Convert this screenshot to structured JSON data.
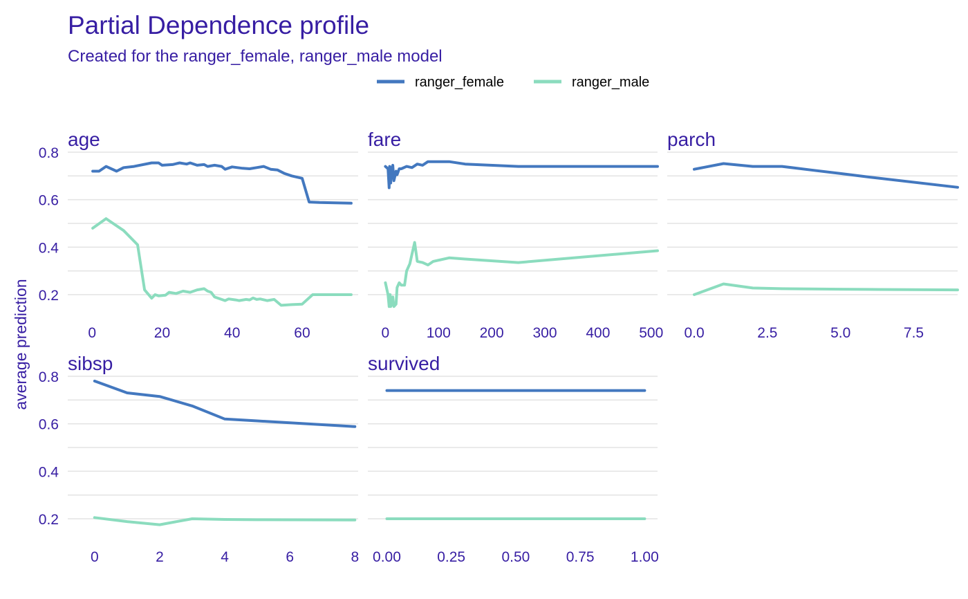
{
  "chart_data": {
    "type": "line",
    "title": "Partial Dependence profile",
    "subtitle": "Created for the ranger_female, ranger_male model",
    "ylabel": "average prediction",
    "legend_position": "top-center",
    "legend": [
      {
        "name": "ranger_female",
        "color": "#4378bf"
      },
      {
        "name": "ranger_male",
        "color": "#8bdcbe"
      }
    ],
    "ylim": [
      0.12,
      0.82
    ],
    "yticks": [
      0.2,
      0.4,
      0.6,
      0.8
    ],
    "grid": true,
    "panels": [
      {
        "name": "age",
        "xlim": [
          -3,
          76
        ],
        "xticks": [
          {
            "v": 0,
            "label": "0"
          },
          {
            "v": 20,
            "label": "20"
          },
          {
            "v": 40,
            "label": "40"
          },
          {
            "v": 60,
            "label": "60"
          }
        ],
        "series": [
          {
            "name": "ranger_female",
            "x": [
              0.17,
              2,
              4,
              7,
              9,
              12,
              17,
              19,
              20,
              23,
              25,
              27,
              28,
              30,
              32,
              33,
              35,
              37,
              38,
              40,
              43,
              45,
              47,
              49,
              51,
              53,
              55,
              57,
              60,
              62,
              65,
              74
            ],
            "y": [
              0.72,
              0.72,
              0.74,
              0.72,
              0.735,
              0.74,
              0.755,
              0.755,
              0.745,
              0.748,
              0.755,
              0.75,
              0.755,
              0.745,
              0.748,
              0.74,
              0.745,
              0.74,
              0.728,
              0.738,
              0.732,
              0.73,
              0.735,
              0.74,
              0.728,
              0.725,
              0.71,
              0.7,
              0.69,
              0.59,
              0.588,
              0.585
            ]
          },
          {
            "name": "ranger_male",
            "x": [
              0.17,
              4,
              9,
              13,
              15,
              17,
              18,
              19,
              21,
              22,
              24,
              26,
              28,
              30,
              32,
              33,
              34,
              35,
              36,
              38,
              39,
              41,
              42,
              44,
              45,
              46,
              47,
              48,
              50,
              52,
              54,
              57,
              60,
              63,
              74
            ],
            "y": [
              0.48,
              0.52,
              0.47,
              0.41,
              0.22,
              0.185,
              0.2,
              0.195,
              0.198,
              0.21,
              0.205,
              0.215,
              0.21,
              0.22,
              0.225,
              0.215,
              0.21,
              0.19,
              0.185,
              0.175,
              0.182,
              0.178,
              0.175,
              0.18,
              0.178,
              0.186,
              0.18,
              0.182,
              0.175,
              0.18,
              0.155,
              0.158,
              0.16,
              0.2,
              0.2
            ]
          }
        ]
      },
      {
        "name": "fare",
        "xlim": [
          -7,
          512
        ],
        "xticks": [
          {
            "v": 0,
            "label": "0"
          },
          {
            "v": 100,
            "label": "100"
          },
          {
            "v": 200,
            "label": "200"
          },
          {
            "v": 300,
            "label": "300"
          },
          {
            "v": 400,
            "label": "400"
          },
          {
            "v": 500,
            "label": "500"
          }
        ],
        "series": [
          {
            "name": "ranger_female",
            "x": [
              0,
              5,
              7,
              8,
              9,
              10,
              12,
              14,
              16,
              20,
              22,
              26,
              30,
              40,
              50,
              60,
              70,
              80,
              90,
              120,
              150,
              250,
              512
            ],
            "y": [
              0.74,
              0.73,
              0.65,
              0.74,
              0.7,
              0.67,
              0.73,
              0.745,
              0.68,
              0.72,
              0.705,
              0.73,
              0.73,
              0.74,
              0.735,
              0.75,
              0.745,
              0.76,
              0.76,
              0.76,
              0.75,
              0.74,
              0.74
            ]
          },
          {
            "name": "ranger_male",
            "x": [
              0,
              5,
              7,
              8,
              9,
              10,
              12,
              14,
              16,
              20,
              22,
              26,
              30,
              36,
              40,
              46,
              50,
              55,
              60,
              70,
              80,
              90,
              120,
              150,
              250,
              512
            ],
            "y": [
              0.25,
              0.2,
              0.15,
              0.2,
              0.2,
              0.15,
              0.16,
              0.19,
              0.15,
              0.16,
              0.23,
              0.25,
              0.24,
              0.24,
              0.3,
              0.33,
              0.37,
              0.42,
              0.34,
              0.335,
              0.325,
              0.34,
              0.355,
              0.35,
              0.335,
              0.385
            ]
          }
        ]
      },
      {
        "name": "parch",
        "xlim": [
          -0.45,
          9.0
        ],
        "xticks": [
          {
            "v": 0,
            "label": "0.0"
          },
          {
            "v": 2.5,
            "label": "2.5"
          },
          {
            "v": 5,
            "label": "5.0"
          },
          {
            "v": 7.5,
            "label": "7.5"
          }
        ],
        "series": [
          {
            "name": "ranger_female",
            "x": [
              0,
              1,
              2,
              3,
              4,
              5,
              6,
              9
            ],
            "y": [
              0.728,
              0.752,
              0.74,
              0.74,
              0.725,
              0.71,
              0.695,
              0.652
            ]
          },
          {
            "name": "ranger_male",
            "x": [
              0,
              1,
              2,
              3,
              4,
              5,
              6,
              9
            ],
            "y": [
              0.2,
              0.245,
              0.228,
              0.225,
              0.224,
              0.223,
              0.222,
              0.22
            ]
          }
        ]
      },
      {
        "name": "sibsp",
        "xlim": [
          -0.4,
          8.1
        ],
        "xticks": [
          {
            "v": 0,
            "label": "0"
          },
          {
            "v": 2,
            "label": "2"
          },
          {
            "v": 4,
            "label": "4"
          },
          {
            "v": 6,
            "label": "6"
          },
          {
            "v": 8,
            "label": "8"
          }
        ],
        "series": [
          {
            "name": "ranger_female",
            "x": [
              0,
              1,
              2,
              3,
              4,
              5,
              8
            ],
            "y": [
              0.78,
              0.73,
              0.715,
              0.675,
              0.62,
              0.612,
              0.588
            ]
          },
          {
            "name": "ranger_male",
            "x": [
              0,
              1,
              2,
              3,
              4,
              5,
              8
            ],
            "y": [
              0.205,
              0.188,
              0.175,
              0.2,
              0.197,
              0.196,
              0.195
            ]
          }
        ]
      },
      {
        "name": "survived",
        "xlim": [
          -0.02,
          1.05
        ],
        "xticks": [
          {
            "v": 0,
            "label": "0.00"
          },
          {
            "v": 0.25,
            "label": "0.25"
          },
          {
            "v": 0.5,
            "label": "0.50"
          },
          {
            "v": 0.75,
            "label": "0.75"
          },
          {
            "v": 1,
            "label": "1.00"
          }
        ],
        "series": [
          {
            "name": "ranger_female",
            "x": [
              0,
              1
            ],
            "y": [
              0.74,
              0.74
            ]
          },
          {
            "name": "ranger_male",
            "x": [
              0,
              1
            ],
            "y": [
              0.2,
              0.2
            ]
          }
        ]
      }
    ]
  }
}
